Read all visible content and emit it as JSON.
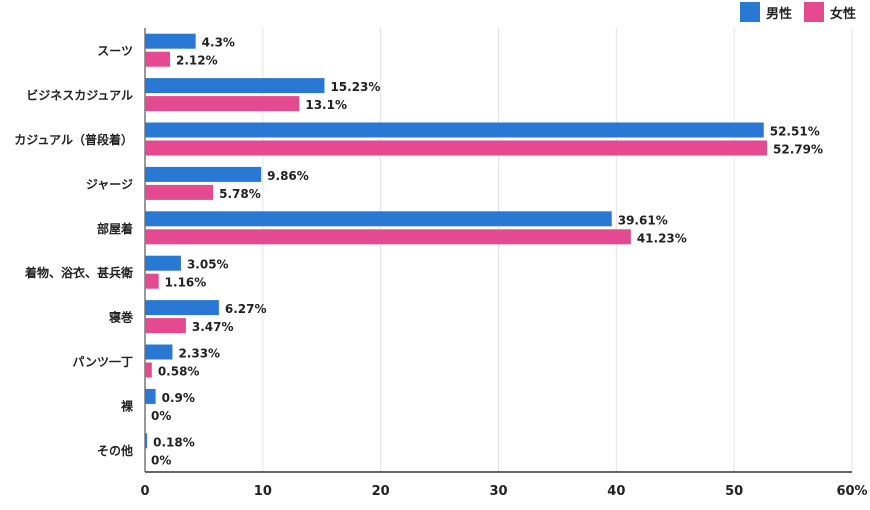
{
  "chart_data": {
    "type": "bar",
    "orientation": "horizontal",
    "categories": [
      "スーツ",
      "ビジネスカジュアル",
      "カジュアル（普段着）",
      "ジャージ",
      "部屋着",
      "着物、浴衣、甚兵衛",
      "寝巻",
      "パンツ一丁",
      "裸",
      "その他"
    ],
    "series": [
      {
        "name": "男性",
        "color": "#2979d4",
        "values": [
          4.3,
          15.23,
          52.51,
          9.86,
          39.61,
          3.05,
          6.27,
          2.33,
          0.9,
          0.18
        ],
        "labels": [
          "4.3%",
          "15.23%",
          "52.51%",
          "9.86%",
          "39.61%",
          "3.05%",
          "6.27%",
          "2.33%",
          "0.9%",
          "0.18%"
        ]
      },
      {
        "name": "女性",
        "color": "#e5498f",
        "values": [
          2.12,
          13.1,
          52.79,
          5.78,
          41.23,
          1.16,
          3.47,
          0.58,
          0,
          0
        ],
        "labels": [
          "2.12%",
          "13.1%",
          "52.79%",
          "5.78%",
          "41.23%",
          "1.16%",
          "3.47%",
          "0.58%",
          "0%",
          "0%"
        ]
      }
    ],
    "xlim": [
      0,
      60
    ],
    "xticks": [
      "0",
      "10",
      "20",
      "30",
      "40",
      "50",
      "60%"
    ],
    "grid": true,
    "legend_position": "top-right"
  }
}
